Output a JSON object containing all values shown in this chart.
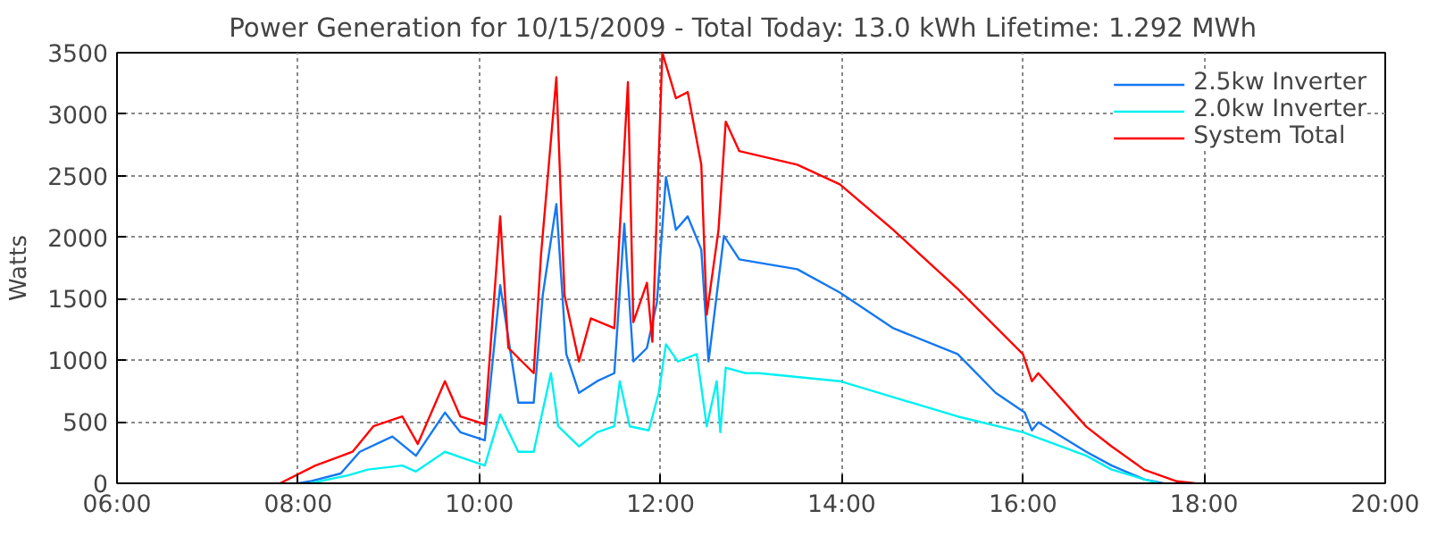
{
  "chart_data": {
    "type": "line",
    "title": "Power Generation for 10/15/2009 - Total Today: 13.0 kWh   Lifetime: 1.292 MWh",
    "ylabel": "Watts",
    "xlim": [
      6,
      20
    ],
    "xticks": [
      {
        "value": 6,
        "label": "06:00"
      },
      {
        "value": 8,
        "label": "08:00"
      },
      {
        "value": 10,
        "label": "10:00"
      },
      {
        "value": 12,
        "label": "12:00"
      },
      {
        "value": 14,
        "label": "14:00"
      },
      {
        "value": 16,
        "label": "16:00"
      },
      {
        "value": 18,
        "label": "18:00"
      },
      {
        "value": 20,
        "label": "20:00"
      }
    ],
    "ylim": [
      0,
      3500
    ],
    "yticks": [
      0,
      500,
      1000,
      1500,
      2000,
      2500,
      3000,
      3500
    ],
    "grid": true,
    "legend": "top right",
    "line_style": "solid",
    "series": [
      {
        "name": "2.5kw Inverter",
        "color": "#1478f0",
        "x": [
          8.0,
          8.13,
          8.47,
          8.68,
          9.04,
          9.3,
          9.62,
          9.79,
          10.06,
          10.23,
          10.43,
          10.6,
          10.7,
          10.85,
          10.96,
          11.1,
          11.3,
          11.49,
          11.6,
          11.7,
          11.85,
          11.96,
          12.06,
          12.17,
          12.3,
          12.45,
          12.53,
          12.62,
          12.7,
          12.87,
          13.51,
          13.98,
          14.57,
          15.28,
          15.7,
          16.02,
          16.1,
          16.17,
          16.7,
          16.98,
          17.34,
          17.55
        ],
        "values": [
          0,
          16,
          80,
          256,
          380,
          224,
          575,
          415,
          350,
          1610,
          655,
          655,
          1530,
          2270,
          1050,
          735,
          830,
          895,
          2110,
          990,
          1100,
          1470,
          2490,
          2060,
          2170,
          1900,
          990,
          1530,
          2010,
          1820,
          1740,
          1550,
          1260,
          1050,
          735,
          575,
          430,
          495,
          256,
          144,
          32,
          0
        ]
      },
      {
        "name": "2.0kw Inverter",
        "color": "#00f0f0",
        "x": [
          8.13,
          8.55,
          8.77,
          9.15,
          9.3,
          9.62,
          10.06,
          10.23,
          10.43,
          10.6,
          10.79,
          10.87,
          11.1,
          11.3,
          11.49,
          11.55,
          11.66,
          11.87,
          11.98,
          12.06,
          12.19,
          12.4,
          12.51,
          12.62,
          12.66,
          12.72,
          12.94,
          13.09,
          13.98,
          14.57,
          15.28,
          16.0,
          16.7,
          16.98,
          17.34,
          17.5
        ],
        "values": [
          0,
          64,
          112,
          144,
          96,
          256,
          144,
          560,
          256,
          256,
          895,
          463,
          300,
          415,
          463,
          830,
          463,
          430,
          735,
          1130,
          990,
          1050,
          463,
          830,
          415,
          940,
          895,
          895,
          830,
          700,
          543,
          415,
          224,
          112,
          32,
          0
        ]
      },
      {
        "name": "System Total",
        "color": "#ff0000",
        "x": [
          7.8,
          8.19,
          8.6,
          8.83,
          9.15,
          9.32,
          9.62,
          9.79,
          10.06,
          10.23,
          10.32,
          10.6,
          10.68,
          10.85,
          10.94,
          11.1,
          11.23,
          11.49,
          11.64,
          11.7,
          11.85,
          11.91,
          12.02,
          12.17,
          12.3,
          12.45,
          12.51,
          12.64,
          12.72,
          12.87,
          13.51,
          13.98,
          14.57,
          15.28,
          16.0,
          16.1,
          16.17,
          16.7,
          16.98,
          17.34,
          17.7,
          17.9
        ],
        "values": [
          0,
          144,
          256,
          463,
          543,
          320,
          830,
          543,
          480,
          2170,
          1100,
          895,
          1850,
          3300,
          1530,
          990,
          1340,
          1260,
          3260,
          1310,
          1630,
          1150,
          3500,
          3130,
          3180,
          2590,
          1370,
          2060,
          2940,
          2700,
          2590,
          2430,
          2060,
          1580,
          1050,
          830,
          895,
          460,
          300,
          110,
          16,
          0
        ]
      }
    ]
  }
}
